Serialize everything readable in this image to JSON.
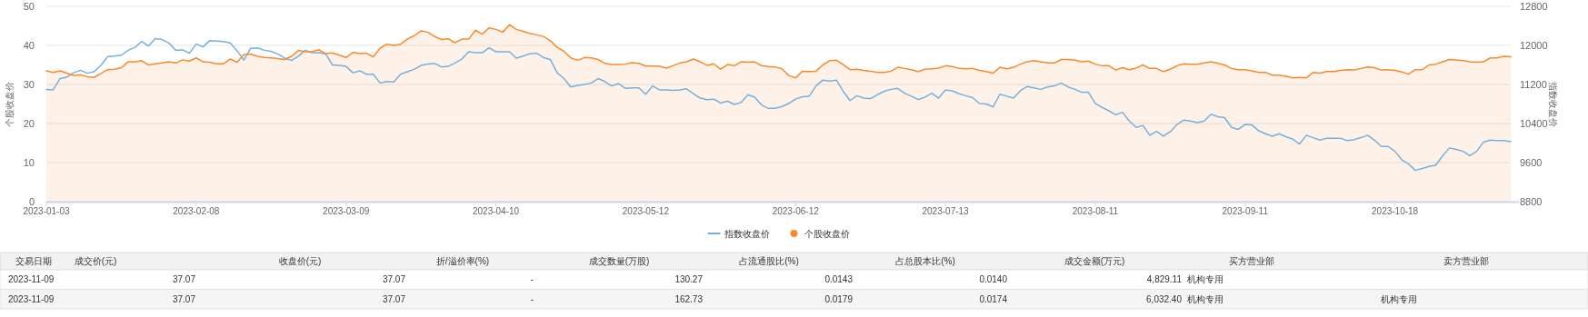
{
  "chart_data": [
    {
      "type": "line",
      "ylabel": "个股收盘价",
      "y2label": "指数收盘价",
      "ylim": [
        0,
        50
      ],
      "yticks": [
        0,
        10,
        20,
        30,
        40,
        50
      ],
      "y2lim": [
        8800,
        12800
      ],
      "y2ticks": [
        8800,
        9600,
        10400,
        11200,
        12000,
        12800
      ],
      "grid": "y",
      "legend": "bottom",
      "categories": [
        "2023-01-03",
        null,
        null,
        null,
        null,
        null,
        null,
        null,
        null,
        null,
        null,
        null,
        null,
        null,
        null,
        null,
        null,
        null,
        null,
        null,
        null,
        null,
        "2023-02-08",
        null,
        null,
        null,
        null,
        null,
        null,
        null,
        null,
        null,
        null,
        null,
        null,
        null,
        null,
        null,
        null,
        null,
        null,
        null,
        null,
        null,
        "2023-03-09",
        null,
        null,
        null,
        null,
        null,
        null,
        null,
        null,
        null,
        null,
        null,
        null,
        null,
        null,
        null,
        null,
        null,
        null,
        null,
        null,
        null,
        "2023-04-10",
        null,
        null,
        null,
        null,
        null,
        null,
        null,
        null,
        null,
        null,
        null,
        null,
        null,
        null,
        null,
        null,
        null,
        null,
        null,
        null,
        null,
        "2023-05-12",
        null,
        null,
        null,
        null,
        null,
        null,
        null,
        null,
        null,
        null,
        null,
        null,
        null,
        null,
        null,
        null,
        null,
        null,
        null,
        null,
        null,
        "2023-06-12",
        null,
        null,
        null,
        null,
        null,
        null,
        null,
        null,
        null,
        null,
        null,
        null,
        null,
        null,
        null,
        null,
        null,
        null,
        null,
        null,
        null,
        "2023-07-13",
        null,
        null,
        null,
        null,
        null,
        null,
        null,
        null,
        null,
        null,
        null,
        null,
        null,
        null,
        null,
        null,
        null,
        null,
        null,
        null,
        null,
        "2023-08-11",
        null,
        null,
        null,
        null,
        null,
        null,
        null,
        null,
        null,
        null,
        null,
        null,
        null,
        null,
        null,
        null,
        null,
        null,
        null,
        null,
        null,
        "2023-09-11",
        null,
        null,
        null,
        null,
        null,
        null,
        null,
        null,
        null,
        null,
        null,
        null,
        null,
        null,
        null,
        null,
        null,
        null,
        null,
        null,
        null,
        "2023-10-18",
        null,
        null,
        null,
        null,
        null,
        null,
        null,
        null,
        null,
        null,
        null,
        null,
        null,
        null,
        null,
        null,
        null
      ],
      "series": [
        {
          "name": "指数收盘价",
          "type": "line",
          "axis": "y2",
          "color": "#74b1e0",
          "values": [
            11100,
            11090,
            11320,
            11350,
            11440,
            11490,
            11430,
            11460,
            11590,
            11770,
            11780,
            11800,
            11900,
            11960,
            12080,
            11990,
            12140,
            12120,
            12050,
            11900,
            11910,
            11840,
            12030,
            11970,
            12100,
            12090,
            12080,
            12050,
            11890,
            11700,
            11940,
            11950,
            11900,
            11880,
            11820,
            11740,
            11690,
            11780,
            11900,
            11850,
            11850,
            11830,
            11600,
            11590,
            11570,
            11440,
            11480,
            11410,
            11410,
            11230,
            11260,
            11250,
            11410,
            11460,
            11510,
            11590,
            11620,
            11630,
            11560,
            11570,
            11640,
            11720,
            11870,
            11850,
            11850,
            11950,
            11870,
            11870,
            11870,
            11740,
            11780,
            11830,
            11840,
            11750,
            11710,
            11440,
            11320,
            11150,
            11180,
            11200,
            11230,
            11320,
            11260,
            11170,
            11220,
            11120,
            11130,
            11130,
            11000,
            11170,
            11090,
            11090,
            11080,
            11090,
            11110,
            11010,
            10920,
            10890,
            10900,
            10820,
            10860,
            10790,
            10830,
            10990,
            10940,
            10780,
            10710,
            10710,
            10750,
            10810,
            10900,
            10950,
            10960,
            11170,
            11290,
            11270,
            11290,
            11060,
            10870,
            10970,
            10920,
            10910,
            10990,
            11060,
            11100,
            11120,
            11020,
            10960,
            10890,
            10940,
            11020,
            10920,
            11090,
            11070,
            11010,
            10970,
            10930,
            10810,
            10800,
            10740,
            11000,
            10960,
            10920,
            11070,
            11160,
            11130,
            11100,
            11150,
            11170,
            11230,
            11150,
            11100,
            11040,
            11040,
            10810,
            10730,
            10660,
            10580,
            10630,
            10450,
            10320,
            10360,
            10160,
            10240,
            10140,
            10230,
            10380,
            10470,
            10450,
            10420,
            10450,
            10590,
            10540,
            10520,
            10320,
            10280,
            10380,
            10370,
            10250,
            10190,
            10140,
            10190,
            10130,
            10080,
            9980,
            10160,
            10110,
            10060,
            10100,
            10100,
            10100,
            10050,
            10070,
            10110,
            10160,
            10060,
            9930,
            9930,
            9830,
            9660,
            9570,
            9440,
            9480,
            9520,
            9550,
            9740,
            9900,
            9870,
            9830,
            9740,
            9830,
            10020,
            10060,
            10050,
            10050,
            10030
          ]
        },
        {
          "name": "个股收盘价",
          "type": "area",
          "color": "#f98a2c",
          "values": [
            33.5,
            33.1,
            33.5,
            32.9,
            32.3,
            32.5,
            32.0,
            31.8,
            32.8,
            33.8,
            33.9,
            34.3,
            35.8,
            35.8,
            36.1,
            35.0,
            35.3,
            35.5,
            35.8,
            35.5,
            36.3,
            36.0,
            36.8,
            35.8,
            35.7,
            35.3,
            35.3,
            36.5,
            35.7,
            37.7,
            37.8,
            37.2,
            36.9,
            36.8,
            36.6,
            36.4,
            37.2,
            38.7,
            38.4,
            38.4,
            38.9,
            37.9,
            38.1,
            37.5,
            36.9,
            38.2,
            37.9,
            38.0,
            37.1,
            39.3,
            40.3,
            40.0,
            40.3,
            41.6,
            42.5,
            43.7,
            43.4,
            42.3,
            41.5,
            41.7,
            40.7,
            41.6,
            41.6,
            43.9,
            42.9,
            44.5,
            44.1,
            43.4,
            45.3,
            44.1,
            43.6,
            43.1,
            42.7,
            42.3,
            41.2,
            39.5,
            38.5,
            36.8,
            36.2,
            36.9,
            36.8,
            36.4,
            35.4,
            35.1,
            35.1,
            35.2,
            35.6,
            35.4,
            34.7,
            34.7,
            34.7,
            34.2,
            34.8,
            35.5,
            35.8,
            36.5,
            35.8,
            34.9,
            35.3,
            33.9,
            35.1,
            34.8,
            35.8,
            35.7,
            35.8,
            34.8,
            34.6,
            34.5,
            34.0,
            32.3,
            31.7,
            33.4,
            33.3,
            33.4,
            35.0,
            36.1,
            36.2,
            35.1,
            33.8,
            33.9,
            33.6,
            33.4,
            33.1,
            33.1,
            33.4,
            34.4,
            34.1,
            33.8,
            33.3,
            33.9,
            34.0,
            34.2,
            34.8,
            34.6,
            34.1,
            34.0,
            34.1,
            33.6,
            33.3,
            32.9,
            34.4,
            34.0,
            34.4,
            35.2,
            35.8,
            36.1,
            35.8,
            35.5,
            35.5,
            36.4,
            36.4,
            36.2,
            35.8,
            36.0,
            35.2,
            34.8,
            34.8,
            33.7,
            34.3,
            33.8,
            34.2,
            35.0,
            34.1,
            34.1,
            33.3,
            33.9,
            34.8,
            35.3,
            35.2,
            35.2,
            35.5,
            35.8,
            35.4,
            35.0,
            34.1,
            33.8,
            33.8,
            33.5,
            33.1,
            33.1,
            32.4,
            32.4,
            32.1,
            31.7,
            31.8,
            31.7,
            33.1,
            32.9,
            33.3,
            33.3,
            33.6,
            33.8,
            33.7,
            34.1,
            34.5,
            34.3,
            33.7,
            33.8,
            33.6,
            33.2,
            32.7,
            33.8,
            33.8,
            35.0,
            35.2,
            35.8,
            36.4,
            36.3,
            36.1,
            35.8,
            35.7,
            35.8,
            36.8,
            36.8,
            37.2,
            37.1
          ]
        }
      ]
    },
    {
      "type": "other",
      "categories": [
        "交易日期",
        "成交价(元)",
        "收盘价(元)",
        "折/溢价率(%)",
        "成交数量(万股)",
        "占流通股比(%)",
        "占总股本比(%)",
        "成交金额(万元)",
        "买方营业部",
        "卖方营业部"
      ],
      "cell_labels": [
        [
          "2023-11-09",
          "37.07",
          "37.07",
          "-",
          "130.27",
          "0.0143",
          "0.0140",
          "4,829.11",
          "机构专用",
          null
        ],
        [
          "2023-11-09",
          "37.07",
          "37.07",
          "-",
          "162.73",
          "0.0179",
          "0.0174",
          "6,032.40",
          "机构专用",
          "机构专用"
        ]
      ]
    }
  ]
}
